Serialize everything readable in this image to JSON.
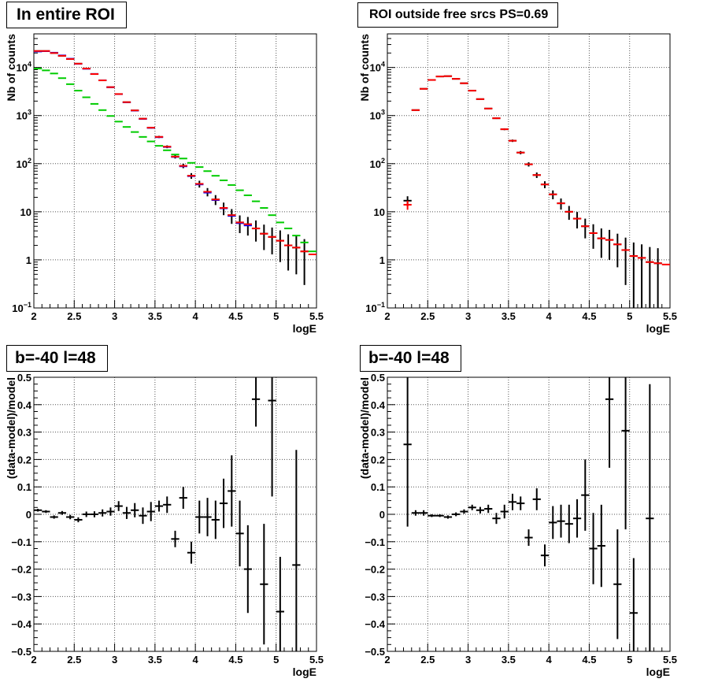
{
  "chart_data": [
    {
      "type": "scatter",
      "title": "In entire ROI",
      "xlabel": "logE",
      "ylabel": "Nb of counts",
      "xlim": [
        2,
        5.5
      ],
      "ylim": [
        0.1,
        50000
      ],
      "yscale": "log",
      "grid": true,
      "x_tick_labels": [
        "2",
        "2.5",
        "3",
        "3.5",
        "4",
        "4.5",
        "5",
        "5.5"
      ],
      "y_tick_labels": [
        {
          "value": 0.1,
          "base": "10",
          "exp": "−1"
        },
        {
          "value": 1,
          "text": "1"
        },
        {
          "value": 10,
          "text": "10"
        },
        {
          "value": 100,
          "base": "10",
          "exp": "2"
        },
        {
          "value": 1000,
          "base": "10",
          "exp": "3"
        },
        {
          "value": 10000,
          "base": "10",
          "exp": "4"
        }
      ],
      "series": [
        {
          "color": "#000000",
          "x": [
            2.05,
            2.15,
            2.25,
            2.35,
            2.45,
            2.55,
            2.65,
            2.75,
            2.85,
            2.95,
            3.05,
            3.15,
            3.25,
            3.35,
            3.45,
            3.55,
            3.65,
            3.75,
            3.85,
            3.95,
            4.05,
            4.15,
            4.25,
            4.35,
            4.45,
            4.55,
            4.65,
            4.75,
            4.85,
            4.95,
            5.05,
            5.15,
            5.25,
            5.35
          ],
          "y": [
            22000,
            22000,
            20000,
            17500,
            15000,
            12000,
            9500,
            7300,
            5400,
            3900,
            2800,
            1900,
            1280,
            860,
            560,
            360,
            225,
            140,
            90,
            56,
            38,
            26,
            18,
            12,
            8.5,
            6,
            5.5,
            4.5,
            3.5,
            3,
            2.5,
            2,
            1.8,
            1.5
          ],
          "err": [
            150,
            150,
            140,
            130,
            120,
            110,
            97,
            85,
            73,
            62,
            53,
            44,
            36,
            29,
            24,
            19,
            15,
            12,
            9.5,
            7.5,
            6.2,
            5.1,
            4.2,
            3.5,
            2.9,
            2.4,
            2.3,
            2.1,
            1.9,
            1.7,
            1.6,
            1.4,
            1.3,
            1.2
          ]
        },
        {
          "color": "#0000ff",
          "x": [
            2.05,
            2.15,
            2.25,
            2.35,
            2.45,
            2.55,
            2.65,
            2.75,
            2.85,
            2.95,
            3.05,
            3.15,
            3.25,
            3.35,
            3.45,
            3.55,
            3.65,
            3.75,
            3.85,
            3.95,
            4.05,
            4.15,
            4.25,
            4.35,
            4.45,
            4.55,
            4.65
          ],
          "y": [
            21500,
            21800,
            20300,
            17800,
            15200,
            11900,
            9400,
            7350,
            5420,
            3880,
            2790,
            1880,
            1270,
            850,
            555,
            355,
            222,
            138,
            88,
            55,
            37,
            25,
            17.5,
            11.8,
            8.2,
            5.8,
            5.2
          ],
          "err": [
            0,
            0,
            0,
            0,
            0,
            0,
            0,
            0,
            0,
            0,
            0,
            0,
            0,
            0,
            0,
            0,
            0,
            0,
            0,
            0,
            0,
            0,
            0,
            0,
            0,
            0,
            0
          ]
        },
        {
          "color": "#ff0000",
          "x": [
            2.05,
            2.15,
            2.25,
            2.35,
            2.45,
            2.55,
            2.65,
            2.75,
            2.85,
            2.95,
            3.05,
            3.15,
            3.25,
            3.35,
            3.45,
            3.55,
            3.65,
            3.75,
            3.85,
            3.95,
            4.05,
            4.15,
            4.25,
            4.35,
            4.45,
            4.55,
            4.65,
            4.75,
            4.85,
            4.95,
            5.05,
            5.15,
            5.25,
            5.35,
            5.45
          ],
          "y": [
            22000,
            22000,
            20000,
            17500,
            15000,
            12000,
            9500,
            7300,
            5400,
            3900,
            2800,
            1900,
            1280,
            860,
            560,
            360,
            225,
            140,
            90,
            56,
            38,
            26,
            18,
            12,
            8.5,
            6,
            5.5,
            4.5,
            3.5,
            3,
            2.5,
            2,
            1.8,
            1.5,
            1.3
          ],
          "err": [
            0,
            0,
            0,
            0,
            0,
            0,
            0,
            0,
            0,
            0,
            0,
            0,
            0,
            0,
            0,
            0,
            0,
            0,
            0,
            0,
            0,
            0,
            0,
            0,
            0,
            0,
            0,
            0,
            0,
            0,
            0,
            0,
            0,
            0,
            0
          ]
        },
        {
          "color": "#00cc00",
          "x": [
            2.05,
            2.15,
            2.25,
            2.35,
            2.45,
            2.55,
            2.65,
            2.75,
            2.85,
            2.95,
            3.05,
            3.15,
            3.25,
            3.35,
            3.45,
            3.55,
            3.65,
            3.75,
            3.85,
            3.95,
            4.05,
            4.15,
            4.25,
            4.35,
            4.45,
            4.55,
            4.65,
            4.75,
            4.85,
            4.95,
            5.05,
            5.15,
            5.25,
            5.35,
            5.45
          ],
          "y": [
            9500,
            8700,
            7500,
            6000,
            4500,
            3300,
            2400,
            1750,
            1300,
            980,
            750,
            580,
            455,
            360,
            290,
            235,
            190,
            155,
            128,
            104,
            85,
            70,
            56,
            45,
            36,
            28,
            22,
            16.5,
            12,
            8.5,
            6,
            4.5,
            3.2,
            2.3,
            1.5
          ],
          "err": [
            0,
            0,
            0,
            0,
            0,
            0,
            0,
            0,
            0,
            0,
            0,
            0,
            0,
            0,
            0,
            0,
            0,
            0,
            0,
            0,
            0,
            0,
            0,
            0,
            0,
            0,
            0,
            0,
            0,
            0,
            0,
            0,
            0,
            0,
            0
          ]
        }
      ]
    },
    {
      "type": "scatter",
      "title": "ROI outside free srcs PS=0.69",
      "xlabel": "logE",
      "ylabel": "Nb of counts",
      "xlim": [
        2,
        5.5
      ],
      "ylim": [
        0.1,
        50000
      ],
      "yscale": "log",
      "grid": true,
      "x_tick_labels": [
        "2",
        "2.5",
        "3",
        "3.5",
        "4",
        "4.5",
        "5",
        "5.5"
      ],
      "y_tick_labels": [
        {
          "value": 0.1,
          "base": "10",
          "exp": "−1"
        },
        {
          "value": 1,
          "text": "1"
        },
        {
          "value": 10,
          "text": "10"
        },
        {
          "value": 100,
          "base": "10",
          "exp": "2"
        },
        {
          "value": 1000,
          "base": "10",
          "exp": "3"
        },
        {
          "value": 10000,
          "base": "10",
          "exp": "4"
        }
      ],
      "series": [
        {
          "color": "#000000",
          "x": [
            2.25,
            2.35,
            2.45,
            2.55,
            2.65,
            2.75,
            2.85,
            2.95,
            3.05,
            3.15,
            3.25,
            3.35,
            3.45,
            3.55,
            3.65,
            3.75,
            3.85,
            3.95,
            4.05,
            4.15,
            4.25,
            4.35,
            4.45,
            4.55,
            4.65,
            4.75,
            4.85,
            4.95,
            5.05,
            5.15,
            5.25,
            5.35
          ],
          "y": [
            17,
            1300,
            3600,
            5500,
            6500,
            6600,
            5800,
            4700,
            3300,
            2200,
            1400,
            880,
            520,
            300,
            170,
            97,
            58,
            37,
            23,
            15,
            10,
            7.2,
            5,
            3.6,
            2.8,
            2.6,
            2.1,
            1.6,
            1.2,
            1.1,
            0.9,
            0.85
          ],
          "err": [
            4,
            36,
            60,
            74,
            80,
            81,
            76,
            69,
            57,
            47,
            37,
            30,
            23,
            17,
            13,
            9.8,
            7.6,
            6.1,
            4.8,
            3.9,
            3.2,
            2.7,
            2.2,
            1.9,
            1.7,
            1.6,
            1.4,
            1.3,
            1.1,
            1,
            0.95,
            0.9
          ]
        },
        {
          "color": "#ff0000",
          "x": [
            2.25,
            2.35,
            2.45,
            2.55,
            2.65,
            2.75,
            2.85,
            2.95,
            3.05,
            3.15,
            3.25,
            3.35,
            3.45,
            3.55,
            3.65,
            3.75,
            3.85,
            3.95,
            4.05,
            4.15,
            4.25,
            4.35,
            4.45,
            4.55,
            4.65,
            4.75,
            4.85,
            4.95,
            5.05,
            5.15,
            5.25,
            5.35,
            5.45
          ],
          "y": [
            14,
            1300,
            3600,
            5500,
            6500,
            6600,
            5800,
            4700,
            3300,
            2200,
            1400,
            880,
            520,
            300,
            170,
            97,
            58,
            37,
            23,
            15,
            10,
            7.2,
            5,
            3.6,
            2.8,
            2.6,
            2.1,
            1.6,
            1.2,
            1.1,
            0.9,
            0.85,
            0.8
          ],
          "err": [
            3,
            0,
            0,
            0,
            0,
            0,
            0,
            0,
            0,
            0,
            0,
            0,
            0,
            0,
            0,
            0,
            0,
            0,
            0,
            0,
            0,
            0,
            0,
            0,
            0,
            0,
            0,
            0,
            0,
            0,
            0,
            0,
            0
          ]
        }
      ]
    },
    {
      "type": "scatter",
      "title": "b=-40 l=48",
      "xlabel": "logE",
      "ylabel": "(data-model)/model",
      "xlim": [
        2,
        5.5
      ],
      "ylim": [
        -0.5,
        0.5
      ],
      "yscale": "linear",
      "grid": true,
      "x_tick_labels": [
        "2",
        "2.5",
        "3",
        "3.5",
        "4",
        "4.5",
        "5",
        "5.5"
      ],
      "y_tick_labels": [
        {
          "value": -0.5,
          "text": "−0.5"
        },
        {
          "value": -0.4,
          "text": "−0.4"
        },
        {
          "value": -0.3,
          "text": "−0.3"
        },
        {
          "value": -0.2,
          "text": "−0.2"
        },
        {
          "value": -0.1,
          "text": "−0.1"
        },
        {
          "value": 0,
          "text": "0"
        },
        {
          "value": 0.1,
          "text": "0.1"
        },
        {
          "value": 0.2,
          "text": "0.2"
        },
        {
          "value": 0.3,
          "text": "0.3"
        },
        {
          "value": 0.4,
          "text": "0.4"
        },
        {
          "value": 0.5,
          "text": "0.5"
        }
      ],
      "series": [
        {
          "color": "#000000",
          "x": [
            2.05,
            2.15,
            2.25,
            2.35,
            2.45,
            2.55,
            2.65,
            2.75,
            2.85,
            2.95,
            3.05,
            3.15,
            3.25,
            3.35,
            3.45,
            3.55,
            3.65,
            3.75,
            3.85,
            3.95,
            4.05,
            4.15,
            4.25,
            4.35,
            4.45,
            4.55,
            4.65,
            4.75,
            4.85,
            4.95,
            5.05,
            5.25
          ],
          "y": [
            0.015,
            0.01,
            -0.01,
            0.005,
            -0.01,
            -0.02,
            0,
            0,
            0.005,
            0.01,
            0.03,
            0.005,
            0.015,
            -0.005,
            0.01,
            0.03,
            0.035,
            -0.09,
            0.06,
            -0.14,
            -0.01,
            -0.01,
            -0.02,
            0.04,
            0.085,
            -0.07,
            -0.2,
            0.42,
            -0.255,
            0.415,
            -0.355,
            -0.185
          ],
          "err": [
            0.005,
            0.005,
            0.006,
            0.007,
            0.008,
            0.009,
            0.01,
            0.011,
            0.013,
            0.015,
            0.018,
            0.022,
            0.026,
            0.03,
            0.035,
            0.02,
            0.03,
            0.03,
            0.04,
            0.04,
            0.06,
            0.07,
            0.07,
            0.09,
            0.13,
            0.12,
            0.16,
            0.1,
            0.22,
            0.35,
            0.2,
            0.42
          ]
        }
      ]
    },
    {
      "type": "scatter",
      "title": "b=-40 l=48",
      "xlabel": "logE",
      "ylabel": "(data-model)/model",
      "xlim": [
        2,
        5.5
      ],
      "ylim": [
        -0.5,
        0.5
      ],
      "yscale": "linear",
      "grid": true,
      "x_tick_labels": [
        "2",
        "2.5",
        "3",
        "3.5",
        "4",
        "4.5",
        "5",
        "5.5"
      ],
      "y_tick_labels": [
        {
          "value": -0.5,
          "text": "−0.5"
        },
        {
          "value": -0.4,
          "text": "−0.4"
        },
        {
          "value": -0.3,
          "text": "−0.3"
        },
        {
          "value": -0.2,
          "text": "−0.2"
        },
        {
          "value": -0.1,
          "text": "−0.1"
        },
        {
          "value": 0,
          "text": "0"
        },
        {
          "value": 0.1,
          "text": "0.1"
        },
        {
          "value": 0.2,
          "text": "0.2"
        },
        {
          "value": 0.3,
          "text": "0.3"
        },
        {
          "value": 0.4,
          "text": "0.4"
        },
        {
          "value": 0.5,
          "text": "0.5"
        }
      ],
      "series": [
        {
          "color": "#000000",
          "x": [
            2.25,
            2.35,
            2.45,
            2.55,
            2.65,
            2.75,
            2.85,
            2.95,
            3.05,
            3.15,
            3.25,
            3.35,
            3.45,
            3.55,
            3.65,
            3.75,
            3.85,
            3.95,
            4.05,
            4.15,
            4.25,
            4.35,
            4.45,
            4.55,
            4.65,
            4.75,
            4.85,
            4.95,
            5.05,
            5.25
          ],
          "y": [
            0.255,
            0.005,
            0.005,
            -0.005,
            -0.005,
            -0.01,
            0,
            0.01,
            0.025,
            0.015,
            0.02,
            -0.015,
            0.01,
            0.045,
            0.04,
            -0.085,
            0.055,
            -0.15,
            -0.03,
            -0.025,
            -0.035,
            -0.015,
            0.07,
            -0.125,
            -0.115,
            0.42,
            -0.255,
            0.305,
            -0.36,
            -0.015
          ],
          "err": [
            0.3,
            0.01,
            0.01,
            0.005,
            0.005,
            0.006,
            0.007,
            0.008,
            0.01,
            0.012,
            0.015,
            0.02,
            0.025,
            0.03,
            0.025,
            0.03,
            0.04,
            0.04,
            0.06,
            0.06,
            0.07,
            0.07,
            0.13,
            0.13,
            0.15,
            0.25,
            0.2,
            0.36,
            0.2,
            0.49
          ]
        }
      ]
    }
  ]
}
